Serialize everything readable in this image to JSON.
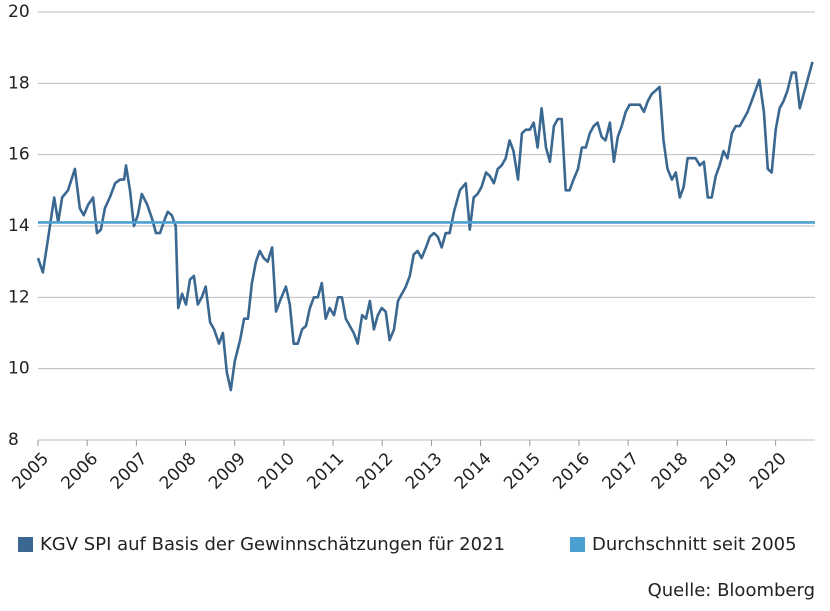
{
  "chart_data": {
    "type": "line",
    "source": "Quelle: Bloomberg",
    "x": [
      2005.0,
      2005.1,
      2005.2,
      2005.33,
      2005.41,
      2005.49,
      2005.61,
      2005.75,
      2005.85,
      2005.93,
      2006.02,
      2006.12,
      2006.2,
      2006.28,
      2006.36,
      2006.46,
      2006.57,
      2006.67,
      2006.75,
      2006.79,
      2006.87,
      2006.95,
      2007.03,
      2007.11,
      2007.22,
      2007.32,
      2007.4,
      2007.48,
      2007.58,
      2007.64,
      2007.72,
      2007.8,
      2007.85,
      2007.93,
      2008.01,
      2008.09,
      2008.17,
      2008.25,
      2008.33,
      2008.41,
      2008.5,
      2008.58,
      2008.68,
      2008.76,
      2008.84,
      2008.92,
      2009.0,
      2009.11,
      2009.19,
      2009.27,
      2009.35,
      2009.43,
      2009.51,
      2009.59,
      2009.67,
      2009.76,
      2009.84,
      2009.92,
      2010.04,
      2010.12,
      2010.2,
      2010.28,
      2010.37,
      2010.45,
      2010.53,
      2010.61,
      2010.69,
      2010.77,
      2010.85,
      2010.93,
      2011.02,
      2011.1,
      2011.18,
      2011.26,
      2011.34,
      2011.42,
      2011.5,
      2011.59,
      2011.67,
      2011.75,
      2011.83,
      2011.91,
      2011.99,
      2012.07,
      2012.15,
      2012.24,
      2012.32,
      2012.4,
      2012.48,
      2012.56,
      2012.64,
      2012.72,
      2012.8,
      2012.89,
      2012.97,
      2013.05,
      2013.13,
      2013.21,
      2013.29,
      2013.37,
      2013.46,
      2013.58,
      2013.7,
      2013.78,
      2013.86,
      2013.94,
      2014.02,
      2014.11,
      2014.19,
      2014.27,
      2014.35,
      2014.43,
      2014.51,
      2014.59,
      2014.67,
      2014.76,
      2014.84,
      2014.92,
      2015.0,
      2015.08,
      2015.16,
      2015.24,
      2015.33,
      2015.41,
      2015.49,
      2015.57,
      2015.65,
      2015.73,
      2015.81,
      2015.89,
      2015.98,
      2016.06,
      2016.14,
      2016.22,
      2016.3,
      2016.38,
      2016.46,
      2016.54,
      2016.63,
      2016.71,
      2016.79,
      2016.87,
      2016.95,
      2017.03,
      2017.15,
      2017.24,
      2017.32,
      2017.4,
      2017.48,
      2017.56,
      2017.64,
      2017.72,
      2017.8,
      2017.89,
      2017.97,
      2018.05,
      2018.13,
      2018.21,
      2018.29,
      2018.37,
      2018.46,
      2018.54,
      2018.62,
      2018.7,
      2018.78,
      2018.86,
      2018.94,
      2019.02,
      2019.11,
      2019.19,
      2019.27,
      2019.35,
      2019.43,
      2019.51,
      2019.59,
      2019.67,
      2019.76,
      2019.84,
      2019.92,
      2020.0,
      2020.08,
      2020.16,
      2020.24,
      2020.33,
      2020.41,
      2020.49,
      2020.75
    ],
    "series": [
      {
        "name": "KGV SPI auf Basis der Gewinnschätzungen für 2021",
        "color": "#3a6890",
        "values": [
          13.1,
          12.7,
          13.6,
          14.8,
          14.1,
          14.8,
          15.0,
          15.6,
          14.5,
          14.3,
          14.6,
          14.8,
          13.8,
          13.9,
          14.5,
          14.8,
          15.2,
          15.3,
          15.3,
          15.7,
          15.0,
          14.0,
          14.3,
          14.9,
          14.6,
          14.2,
          13.8,
          13.8,
          14.2,
          14.4,
          14.3,
          14.0,
          11.7,
          12.1,
          11.8,
          12.5,
          12.6,
          11.8,
          12.0,
          12.3,
          11.3,
          11.1,
          10.7,
          11.0,
          9.9,
          9.4,
          10.2,
          10.8,
          11.4,
          11.4,
          12.4,
          13.0,
          13.3,
          13.1,
          13.0,
          13.4,
          11.6,
          11.9,
          12.3,
          11.8,
          10.7,
          10.7,
          11.1,
          11.2,
          11.7,
          12.0,
          12.0,
          12.4,
          11.4,
          11.7,
          11.5,
          12.0,
          12.0,
          11.4,
          11.2,
          11.0,
          10.7,
          11.5,
          11.4,
          11.9,
          11.1,
          11.5,
          11.7,
          11.6,
          10.8,
          11.1,
          11.9,
          12.1,
          12.3,
          12.6,
          13.2,
          13.3,
          13.1,
          13.4,
          13.7,
          13.8,
          13.7,
          13.4,
          13.8,
          13.8,
          14.4,
          15.0,
          15.2,
          13.9,
          14.8,
          14.9,
          15.1,
          15.5,
          15.4,
          15.2,
          15.6,
          15.7,
          15.9,
          16.4,
          16.1,
          15.3,
          16.6,
          16.7,
          16.7,
          16.9,
          16.2,
          17.3,
          16.2,
          15.8,
          16.8,
          17.0,
          17.0,
          15.0,
          15.0,
          15.3,
          15.6,
          16.2,
          16.2,
          16.6,
          16.8,
          16.9,
          16.5,
          16.4,
          16.9,
          15.8,
          16.5,
          16.8,
          17.2,
          17.4,
          17.4,
          17.4,
          17.2,
          17.5,
          17.7,
          17.8,
          17.9,
          16.4,
          15.6,
          15.3,
          15.5,
          14.8,
          15.1,
          15.9,
          15.9,
          15.9,
          15.7,
          15.8,
          14.8,
          14.8,
          15.4,
          15.7,
          16.1,
          15.9,
          16.6,
          16.8,
          16.8,
          17.0,
          17.2,
          17.5,
          17.8,
          18.1,
          17.2,
          15.6,
          15.5,
          16.7,
          17.3,
          17.5,
          17.8,
          18.3,
          18.3,
          17.3,
          18.6
        ]
      },
      {
        "name": "Durchschnitt seit 2005",
        "color": "#4b9fd1",
        "value": 14.1
      }
    ],
    "xlim": [
      2005,
      2020.8
    ],
    "xticks": [
      2005,
      2006,
      2007,
      2008,
      2009,
      2010,
      2011,
      2012,
      2013,
      2014,
      2015,
      2016,
      2017,
      2018,
      2019,
      2020
    ],
    "ylim": [
      8,
      20
    ],
    "yticks": [
      8,
      10,
      12,
      14,
      16,
      18,
      20
    ],
    "grid": true
  }
}
